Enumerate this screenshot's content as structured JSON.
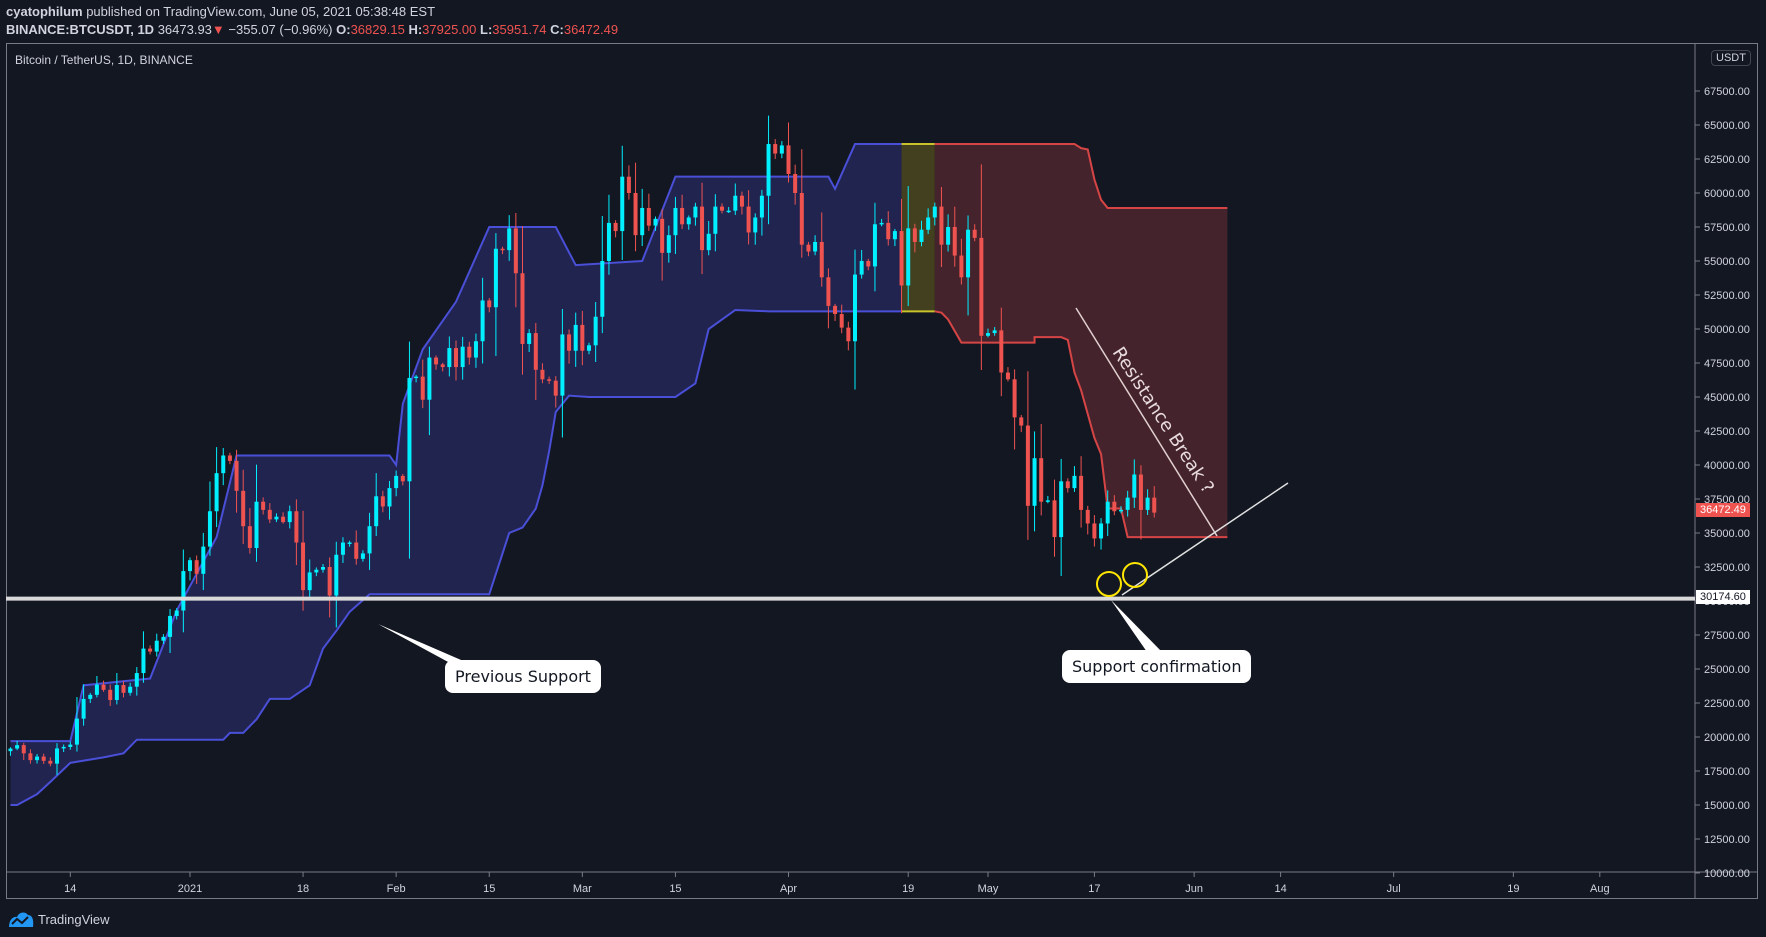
{
  "header": {
    "author": "cyatophilum",
    "published_text": " published on TradingView.com, June 05, 2021 05:38:48 EST",
    "symbol": "BINANCE:BTCUSDT, 1D",
    "last": "36473.93",
    "change": "−355.07 (−0.96%)",
    "o_label": "O:",
    "o": "36829.15",
    "h_label": "H:",
    "h": "37925.00",
    "l_label": "L:",
    "l": "35951.74",
    "c_label": "C:",
    "c": "36472.49"
  },
  "pane_title": "Bitcoin / TetherUS, 1D, BINANCE",
  "currency_badge": "USDT",
  "price_tags": {
    "last": "36472.49",
    "support": "30174.60"
  },
  "annotations": {
    "previous_support": "Previous Support",
    "support_confirmation": "Support confirmation",
    "resistance_break": "Resistance Break ?"
  },
  "footer": {
    "brand": "TradingView"
  },
  "colors": {
    "background": "#131722",
    "up": "#00f0ff",
    "down": "#ef5350",
    "channel_blue": "#4a4fd8",
    "channel_blue_fill": "#222552",
    "channel_red": "#d64545",
    "channel_red_fill": "#45232c",
    "transition_yellow": "#c9c22a",
    "support_line": "#d9d9d9",
    "circles": "#ffe600"
  },
  "chart_data": {
    "type": "candlestick",
    "title": "Bitcoin / TetherUS, 1D, BINANCE",
    "xlabel": "",
    "ylabel": "USDT",
    "ylim": [
      10000,
      70000
    ],
    "y_ticks": [
      10000,
      12500,
      15000,
      17500,
      20000,
      22500,
      25000,
      27500,
      30000,
      32500,
      35000,
      37500,
      40000,
      42500,
      45000,
      47500,
      50000,
      52500,
      55000,
      57500,
      60000,
      62500,
      65000,
      67500
    ],
    "x_ticks": [
      {
        "label": "14",
        "day": -18
      },
      {
        "label": "2021",
        "day": 0
      },
      {
        "label": "18",
        "day": 17
      },
      {
        "label": "Feb",
        "day": 31
      },
      {
        "label": "15",
        "day": 45
      },
      {
        "label": "Mar",
        "day": 59
      },
      {
        "label": "15",
        "day": 73
      },
      {
        "label": "Apr",
        "day": 90
      },
      {
        "label": "19",
        "day": 108
      },
      {
        "label": "May",
        "day": 120
      },
      {
        "label": "17",
        "day": 136
      },
      {
        "label": "Jun",
        "day": 151
      },
      {
        "label": "14",
        "day": 164
      },
      {
        "label": "Jul",
        "day": 181
      },
      {
        "label": "19",
        "day": 199
      },
      {
        "label": "Aug",
        "day": 212
      }
    ],
    "start_day": -27,
    "candles_close": [
      19150,
      19400,
      18800,
      18300,
      18560,
      18250,
      18040,
      19160,
      19270,
      19440,
      21350,
      22800,
      23100,
      23850,
      23470,
      22720,
      23820,
      23250,
      23700,
      24700,
      26500,
      26280,
      27080,
      27360,
      28900,
      29300,
      32200,
      33000,
      32000,
      34000,
      36600,
      39400,
      40700,
      40300,
      38100,
      35500,
      33900,
      37300,
      36700,
      36000,
      36200,
      35800,
      36600,
      34300,
      30800,
      32100,
      32300,
      32500,
      30400,
      33400,
      34300,
      34300,
      33100,
      33500,
      35500,
      37700,
      36950,
      38300,
      39200,
      38800,
      46400,
      46500,
      44800,
      47900,
      47400,
      47200,
      48600,
      47200,
      48700,
      47900,
      49100,
      52100,
      51600,
      55900,
      55800,
      57400,
      54100,
      48900,
      49700,
      47000,
      46300,
      46200,
      45100,
      49600,
      48400,
      50300,
      48400,
      48800,
      50900,
      55000,
      57800,
      57200,
      61200,
      60000,
      56900,
      58900,
      57600,
      58100,
      55600,
      56900,
      58900,
      57700,
      58200,
      59000,
      55800,
      57000,
      59000,
      58700,
      58700,
      59800,
      59000,
      57100,
      58200,
      59800,
      63600,
      62900,
      63500,
      61400,
      60000,
      56200,
      55700,
      56400,
      53800,
      51700,
      51100,
      50100,
      49100,
      54000,
      55000,
      54600,
      57700,
      57800,
      56600,
      57200,
      53200,
      57400,
      56400,
      57300,
      58200,
      59000,
      56200,
      57500,
      55400,
      53800,
      57300,
      56700,
      49500,
      49700,
      49900,
      46800,
      46300,
      43500,
      42900,
      37000,
      40500,
      37300,
      37400,
      34700,
      38800,
      38300,
      39200,
      36700,
      35700,
      34600,
      35700,
      37300,
      36600,
      36700,
      37600,
      39300,
      36700,
      37600,
      36500
    ]
  }
}
